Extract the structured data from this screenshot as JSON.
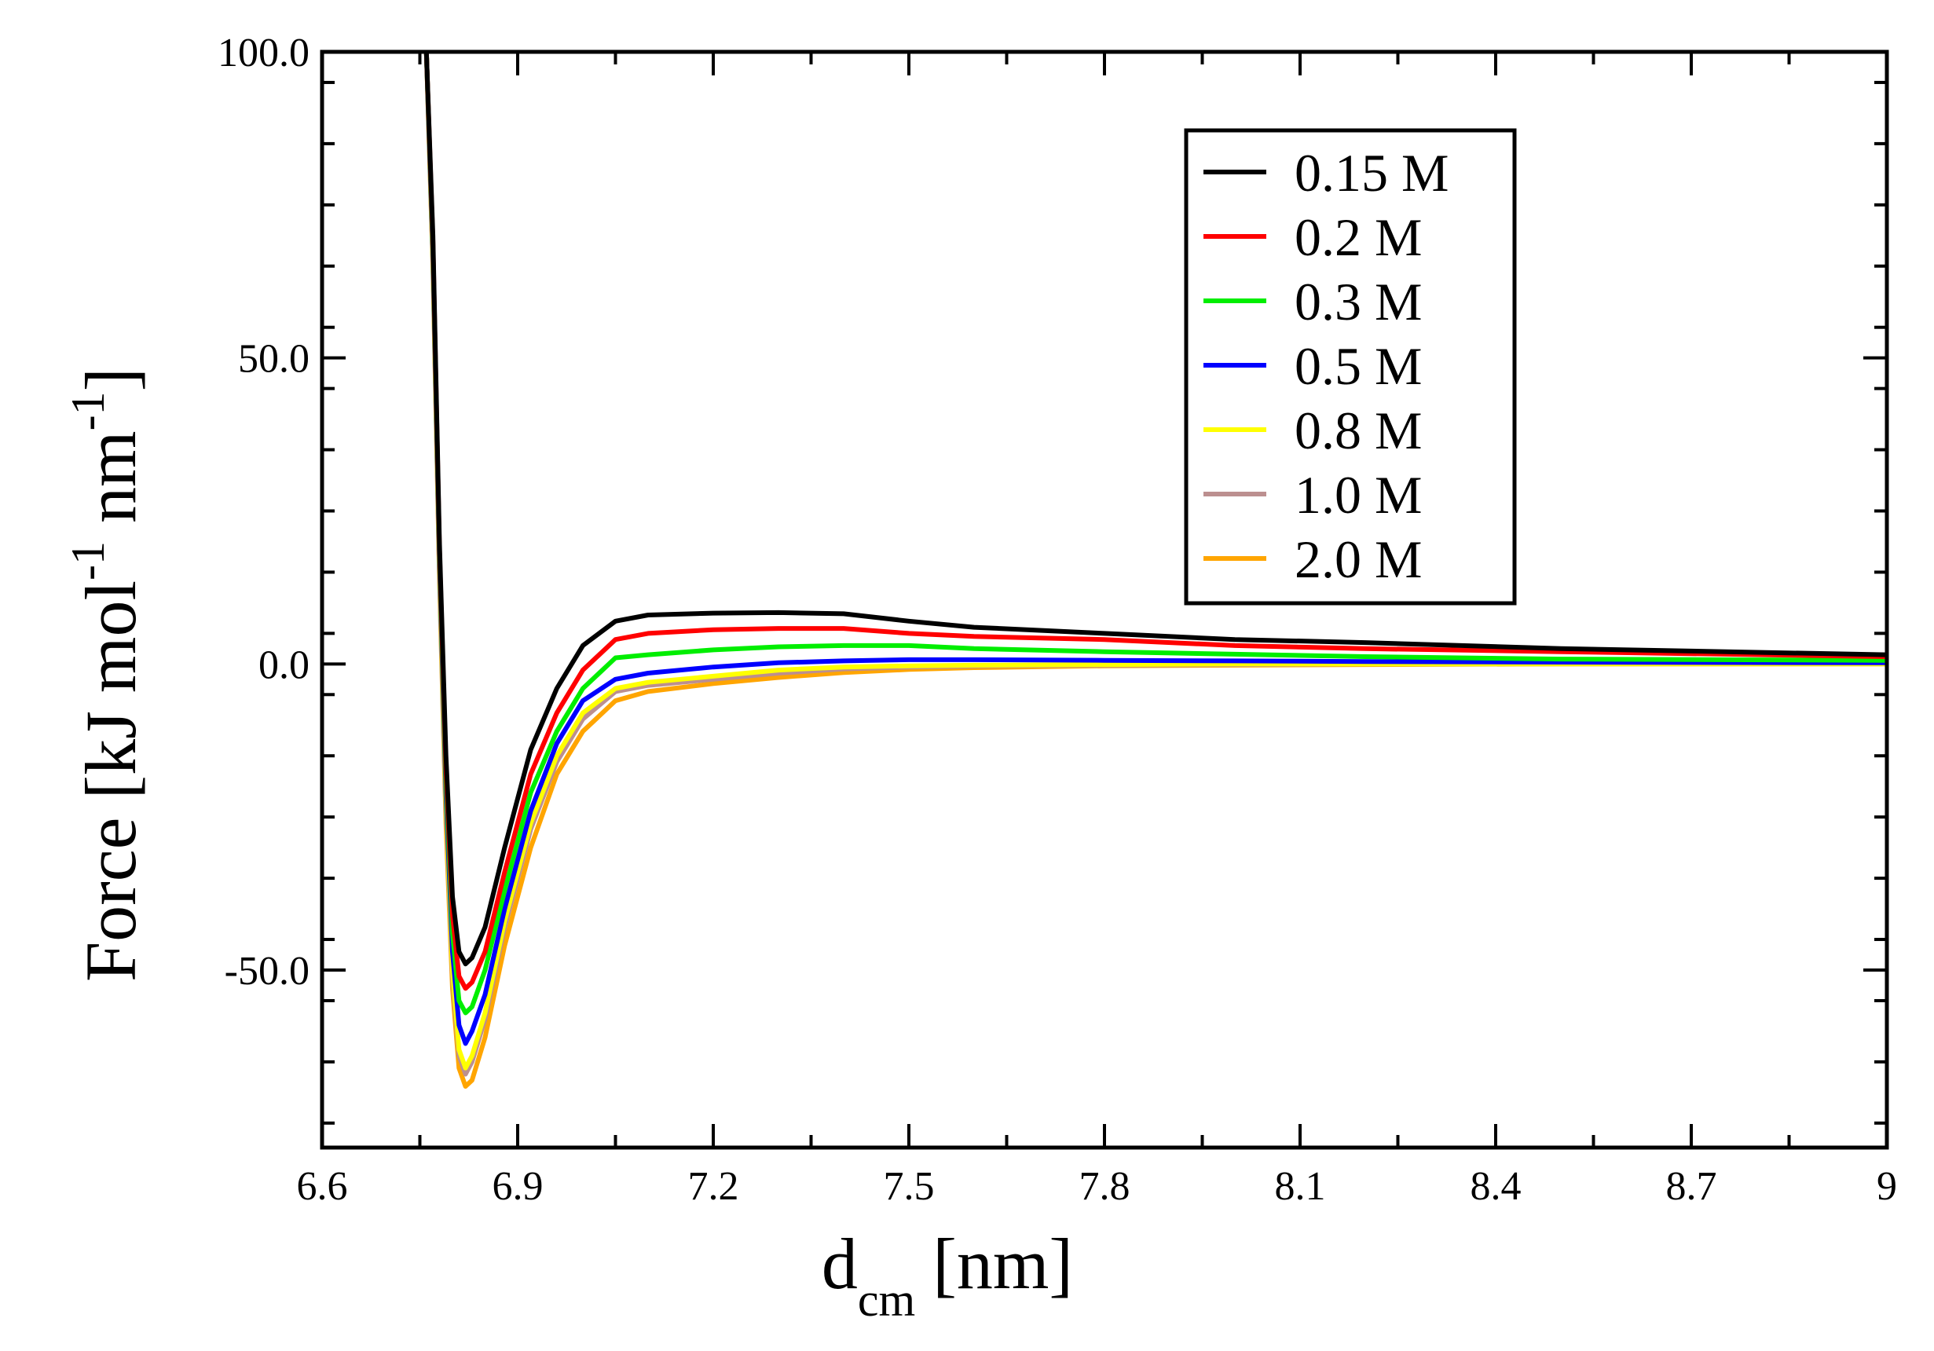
{
  "chart_data": {
    "type": "line",
    "title": "",
    "xlabel": {
      "main": "d",
      "sub": "cm",
      "unit": "[nm]"
    },
    "ylabel": {
      "text": "Force [kJ mol",
      "exp1": "-1",
      "mid": " nm",
      "exp2": "-1",
      "close": "]"
    },
    "xlim": [
      6.6,
      9.0
    ],
    "ylim": [
      -79,
      100
    ],
    "x_ticks": [
      "6.6",
      "6.9",
      "7.2",
      "7.5",
      "7.8",
      "8.1",
      "8.4",
      "8.7",
      "9"
    ],
    "x_tick_values": [
      6.6,
      6.9,
      7.2,
      7.5,
      7.8,
      8.1,
      8.4,
      8.7,
      9.0
    ],
    "y_ticks": [
      "100.0",
      "50.0",
      "0.0",
      "-50.0"
    ],
    "y_tick_values": [
      100,
      50,
      0,
      -50
    ],
    "grid": false,
    "legend_position": "top-right",
    "x": [
      6.76,
      6.77,
      6.78,
      6.79,
      6.8,
      6.81,
      6.82,
      6.83,
      6.85,
      6.88,
      6.92,
      6.96,
      7.0,
      7.05,
      7.1,
      7.2,
      7.3,
      7.4,
      7.5,
      7.6,
      7.8,
      8.0,
      8.2,
      8.5,
      9.0
    ],
    "series": [
      {
        "name": "0.15 M",
        "color": "#000000",
        "values": [
          100,
          70,
          20,
          -15,
          -38,
          -47,
          -49,
          -48,
          -43,
          -30,
          -14,
          -4,
          3,
          7,
          8,
          8.3,
          8.4,
          8.2,
          7.0,
          6.0,
          5.0,
          4.0,
          3.5,
          2.5,
          1.5
        ]
      },
      {
        "name": "0.2 M",
        "color": "#ff0000",
        "values": [
          100,
          69,
          19,
          -17,
          -41,
          -51,
          -53,
          -52,
          -47,
          -34,
          -18,
          -8,
          -1,
          4,
          5,
          5.6,
          5.8,
          5.8,
          5.0,
          4.5,
          4.0,
          3.0,
          2.5,
          2.0,
          1.2
        ]
      },
      {
        "name": "0.3 M",
        "color": "#00ee00",
        "values": [
          100,
          68,
          18,
          -19,
          -44,
          -55,
          -57,
          -56,
          -50,
          -37,
          -21,
          -11,
          -4,
          1,
          1.5,
          2.3,
          2.8,
          3.0,
          3.0,
          2.5,
          2.0,
          1.6,
          1.2,
          0.8,
          0.6
        ]
      },
      {
        "name": "0.5 M",
        "color": "#0000ff",
        "values": [
          100,
          67,
          17,
          -21,
          -47,
          -59,
          -62,
          -60,
          -54,
          -40,
          -24,
          -13,
          -6,
          -2.5,
          -1.5,
          -0.5,
          0.2,
          0.5,
          0.7,
          0.7,
          0.6,
          0.5,
          0.4,
          0.3,
          0.2
        ]
      },
      {
        "name": "0.8 M",
        "color": "#ffff00",
        "values": [
          100,
          66,
          16,
          -23,
          -50,
          -63,
          -66,
          -64,
          -57,
          -42,
          -26,
          -15,
          -8,
          -4,
          -3,
          -2.0,
          -1.0,
          -0.5,
          -0.3,
          -0.2,
          -0.1,
          0.0,
          0.0,
          0.0,
          0.0
        ]
      },
      {
        "name": "1.0 M",
        "color": "#bc8f8f",
        "values": [
          100,
          66,
          15,
          -24,
          -51,
          -64,
          -67,
          -65,
          -58,
          -43,
          -27,
          -16,
          -9,
          -4.5,
          -3.5,
          -2.5,
          -1.5,
          -0.8,
          -0.5,
          -0.3,
          -0.2,
          -0.1,
          0.0,
          0.0,
          0.0
        ]
      },
      {
        "name": "2.0 M",
        "color": "#ffa500",
        "values": [
          100,
          65,
          14,
          -26,
          -53,
          -66,
          -69,
          -68,
          -61,
          -46,
          -30,
          -18,
          -11,
          -6,
          -4.5,
          -3.2,
          -2.2,
          -1.4,
          -0.9,
          -0.6,
          -0.3,
          -0.2,
          -0.1,
          0.0,
          0.0
        ]
      }
    ]
  }
}
